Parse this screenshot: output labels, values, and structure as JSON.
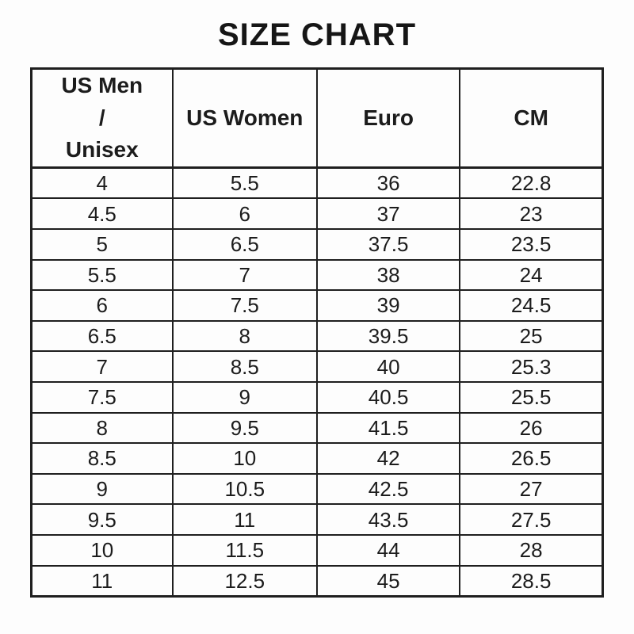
{
  "page_title": "SIZE CHART",
  "chart_data": {
    "type": "table",
    "title": "SIZE CHART",
    "columns": [
      "US Men / Unisex",
      "US Women",
      "Euro",
      "CM"
    ],
    "rows": [
      [
        "4",
        "5.5",
        "36",
        "22.8"
      ],
      [
        "4.5",
        "6",
        "37",
        "23"
      ],
      [
        "5",
        "6.5",
        "37.5",
        "23.5"
      ],
      [
        "5.5",
        "7",
        "38",
        "24"
      ],
      [
        "6",
        "7.5",
        "39",
        "24.5"
      ],
      [
        "6.5",
        "8",
        "39.5",
        "25"
      ],
      [
        "7",
        "8.5",
        "40",
        "25.3"
      ],
      [
        "7.5",
        "9",
        "40.5",
        "25.5"
      ],
      [
        "8",
        "9.5",
        "41.5",
        "26"
      ],
      [
        "8.5",
        "10",
        "42",
        "26.5"
      ],
      [
        "9",
        "10.5",
        "42.5",
        "27"
      ],
      [
        "9.5",
        "11",
        "43.5",
        "27.5"
      ],
      [
        "10",
        "11.5",
        "44",
        "28"
      ],
      [
        "11",
        "12.5",
        "45",
        "28.5"
      ]
    ]
  },
  "table": {
    "header_display": [
      "US Men\n/\nUnisex",
      "US Women",
      "Euro",
      "CM"
    ]
  },
  "colors": {
    "text": "#1c1c1c",
    "border": "#1f1f1f",
    "background": "#fdfdfd"
  }
}
